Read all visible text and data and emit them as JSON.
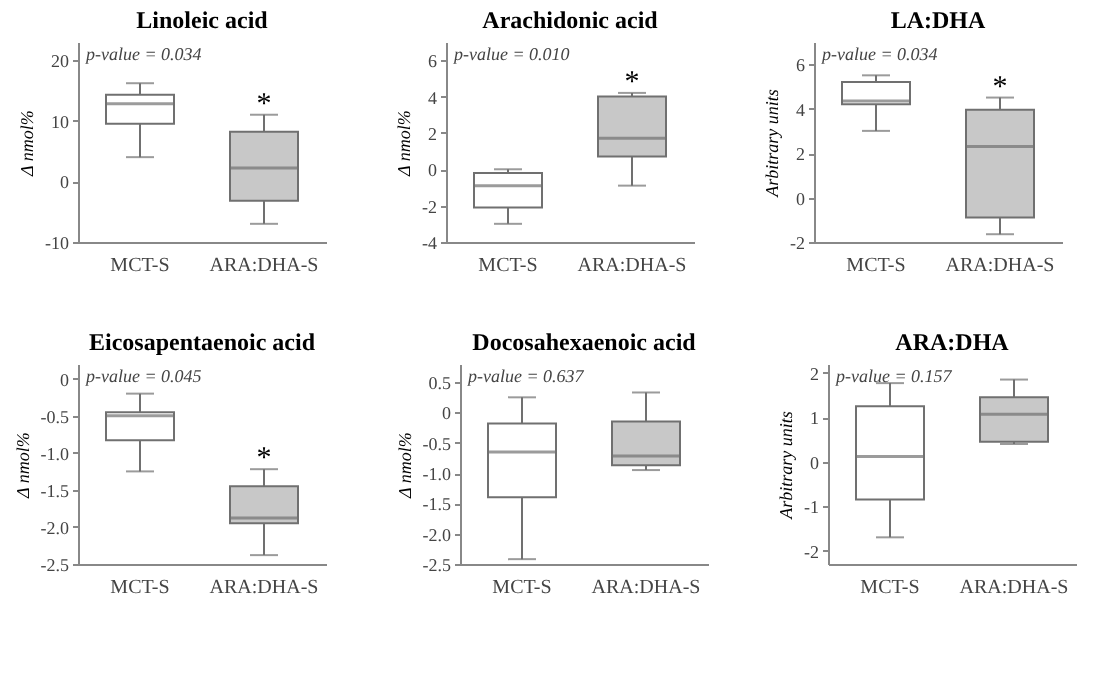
{
  "chart_data": [
    {
      "type": "box",
      "title": "Linoleic acid",
      "ylabel": "Δ nmol%",
      "categories": [
        "MCT-S",
        "ARA:DHA-S"
      ],
      "colors": [
        "#ffffff",
        "#c8c8c8"
      ],
      "ylim": [
        -10,
        23
      ],
      "yticks": [
        -10,
        0,
        10,
        20
      ],
      "grid": false,
      "boxes": [
        {
          "low": 4,
          "q1": 9.5,
          "median": 12.8,
          "q3": 14.3,
          "high": 16.2
        },
        {
          "low": -7,
          "q1": -3.2,
          "median": 2.2,
          "q3": 8.2,
          "high": 11
        }
      ],
      "annotations": [
        "p-value = 0.034",
        {
          "text": "*",
          "x": "ARA:DHA-S",
          "y": 11
        }
      ]
    },
    {
      "type": "box",
      "title": "Arachidonic acid",
      "ylabel": "Δ nmol%",
      "categories": [
        "MCT-S",
        "ARA:DHA-S"
      ],
      "colors": [
        "#ffffff",
        "#c8c8c8"
      ],
      "ylim": [
        -4,
        7
      ],
      "yticks": [
        -4,
        -2,
        0,
        2,
        4,
        6
      ],
      "grid": false,
      "boxes": [
        {
          "low": -3,
          "q1": -2.1,
          "median": -0.9,
          "q3": -0.2,
          "high": 0
        },
        {
          "low": -0.9,
          "q1": 0.7,
          "median": 1.7,
          "q3": 4.0,
          "high": 4.2
        }
      ],
      "annotations": [
        "p-value = 0.010",
        {
          "text": "*",
          "x": "ARA:DHA-S",
          "y": 4.2
        }
      ]
    },
    {
      "type": "box",
      "title": "LA:DHA",
      "ylabel": "Arbitrary units",
      "categories": [
        "MCT-S",
        "ARA:DHA-S"
      ],
      "colors": [
        "#ffffff",
        "#c8c8c8"
      ],
      "ylim": [
        -2,
        7
      ],
      "yticks": [
        -2,
        0,
        2,
        4,
        6
      ],
      "grid": false,
      "boxes": [
        {
          "low": 3.0,
          "q1": 4.2,
          "median": 4.35,
          "q3": 5.2,
          "high": 5.5
        },
        {
          "low": -1.65,
          "q1": -0.9,
          "median": 2.3,
          "q3": 3.95,
          "high": 4.5
        }
      ],
      "annotations": [
        "p-value = 0.034",
        {
          "text": "*",
          "x": "ARA:DHA-S",
          "y": 4.5
        }
      ]
    },
    {
      "type": "box",
      "title": "Eicosapentaenoic acid",
      "ylabel": "Δ nmol%",
      "categories": [
        "MCT-S",
        "ARA:DHA-S"
      ],
      "colors": [
        "#ffffff",
        "#c8c8c8"
      ],
      "ylim": [
        -2.5,
        0.2
      ],
      "yticks": [
        {
          "value": -2.5,
          "label": "-2.5"
        },
        {
          "value": -2,
          "label": "-2.0"
        },
        {
          "value": -1.5,
          "label": "-1.5"
        },
        {
          "value": -1,
          "label": "-1.0"
        },
        {
          "value": -0.5,
          "label": "-0.5"
        },
        0
      ],
      "grid": false,
      "boxes": [
        {
          "low": -1.25,
          "q1": -0.83,
          "median": -0.5,
          "q3": -0.45,
          "high": -0.2
        },
        {
          "low": -2.38,
          "q1": -1.95,
          "median": -1.88,
          "q3": -1.45,
          "high": -1.22
        }
      ],
      "annotations": [
        "p-value = 0.045",
        {
          "text": "*",
          "x": "ARA:DHA-S",
          "y": -1.22
        }
      ]
    },
    {
      "type": "box",
      "title": "Docosahexaenoic acid",
      "ylabel": "Δ nmol%",
      "categories": [
        "MCT-S",
        "ARA:DHA-S"
      ],
      "colors": [
        "#ffffff",
        "#c8c8c8"
      ],
      "ylim": [
        -2.5,
        0.8
      ],
      "yticks": [
        {
          "value": -2.5,
          "label": "-2.5"
        },
        {
          "value": -2,
          "label": "-2.0"
        },
        {
          "value": -1.5,
          "label": "-1.5"
        },
        {
          "value": -1,
          "label": "-1.0"
        },
        {
          "value": -0.5,
          "label": "-0.5"
        },
        0,
        0.5
      ],
      "grid": false,
      "boxes": [
        {
          "low": -2.42,
          "q1": -1.4,
          "median": -0.65,
          "q3": -0.18,
          "high": 0.25
        },
        {
          "low": -0.95,
          "q1": -0.87,
          "median": -0.72,
          "q3": -0.15,
          "high": 0.33
        }
      ],
      "annotations": [
        "p-value = 0.637"
      ]
    },
    {
      "type": "box",
      "title": "ARA:DHA",
      "ylabel": "Arbitrary units",
      "categories": [
        "MCT-S",
        "ARA:DHA-S"
      ],
      "colors": [
        "#ffffff",
        "#c8c8c8"
      ],
      "ylim": [
        -2.3,
        2.2
      ],
      "yticks": [
        -2,
        -1,
        0,
        1,
        2
      ],
      "grid": false,
      "boxes": [
        {
          "low": -1.7,
          "q1": -0.85,
          "median": 0.12,
          "q3": 1.25,
          "high": 1.77
        },
        {
          "low": 0.4,
          "q1": 0.45,
          "median": 1.07,
          "q3": 1.45,
          "high": 1.85
        }
      ],
      "annotations": [
        "p-value = 0.157"
      ]
    }
  ]
}
